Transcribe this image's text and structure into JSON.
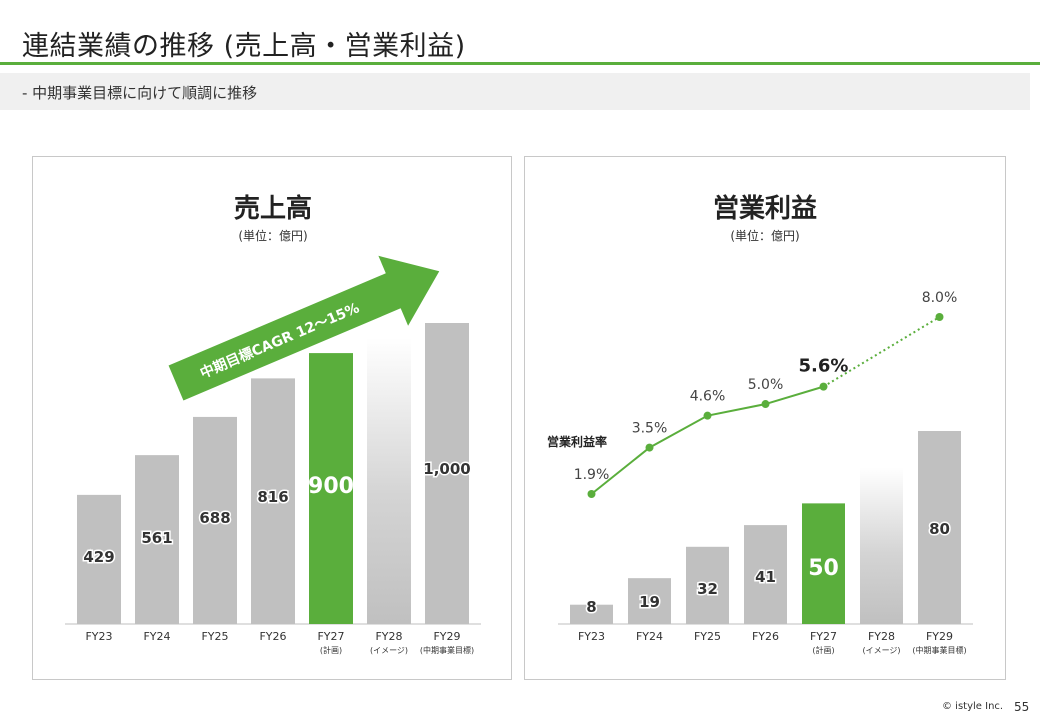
{
  "slide": {
    "title": "連結業績の推移 (売上高・営業利益)",
    "subtitle": "-  中期事業目標に向けて順調に推移"
  },
  "colors": {
    "accent_green": "#5aae3c",
    "bar_gray": "#c0c0c0",
    "rule_green": "#5aae3c",
    "subtitle_band": "#f0f0f0"
  },
  "footer": {
    "copyright": "©  istyle Inc.",
    "page": "55"
  },
  "chart_data": [
    {
      "type": "bar",
      "title": "売上高",
      "unit_label": "(単位：億円)",
      "categories": [
        "FY23",
        "FY24",
        "FY25",
        "FY26",
        "FY27",
        "FY28",
        "FY29"
      ],
      "sub_labels": [
        "",
        "",
        "",
        "",
        "(計画)",
        "(イメージ)",
        "(中期事業目標)"
      ],
      "values": [
        429,
        561,
        688,
        816,
        900,
        null,
        1000
      ],
      "value_labels": [
        "429",
        "561",
        "688",
        "816",
        "900",
        "",
        "1,000"
      ],
      "highlight_index": 4,
      "gradient_index": 5,
      "ylim": [
        0,
        1000
      ],
      "arrow_annotation": "中期目標CAGR 12〜15%"
    },
    {
      "type": "bar+line",
      "title": "営業利益",
      "unit_label": "(単位：億円)",
      "categories": [
        "FY23",
        "FY24",
        "FY25",
        "FY26",
        "FY27",
        "FY28",
        "FY29"
      ],
      "sub_labels": [
        "",
        "",
        "",
        "",
        "(計画)",
        "(イメージ)",
        "(中期事業目標)"
      ],
      "values": [
        8,
        19,
        32,
        41,
        50,
        null,
        80
      ],
      "value_labels": [
        "8",
        "19",
        "32",
        "41",
        "50",
        "",
        "80"
      ],
      "highlight_index": 4,
      "gradient_index": 5,
      "ylim": [
        0,
        80
      ],
      "line": {
        "name": "営業利益率",
        "values": [
          1.9,
          3.5,
          4.6,
          5.0,
          5.6,
          null,
          8.0
        ],
        "labels": [
          "1.9%",
          "3.5%",
          "4.6%",
          "5.0%",
          "5.6%",
          "",
          "8.0%"
        ],
        "dotted_segment": [
          4,
          6
        ]
      }
    }
  ]
}
